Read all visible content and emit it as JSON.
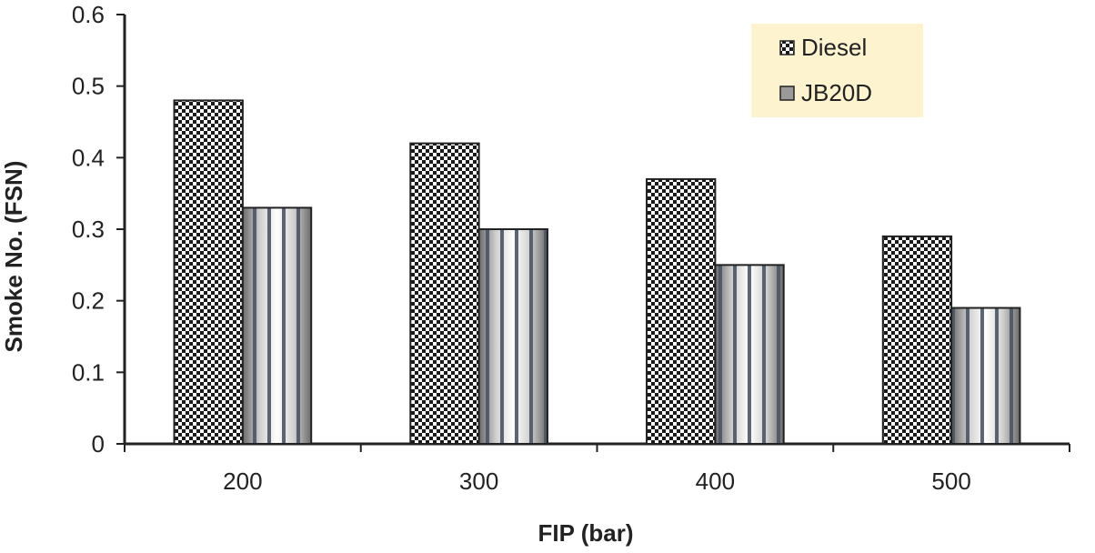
{
  "chart_data": {
    "type": "bar",
    "categories": [
      "200",
      "300",
      "400",
      "500"
    ],
    "series": [
      {
        "name": "Diesel",
        "values": [
          0.48,
          0.42,
          0.37,
          0.29
        ]
      },
      {
        "name": "JB20D",
        "values": [
          0.33,
          0.3,
          0.25,
          0.19
        ]
      }
    ],
    "xlabel": "FIP (bar)",
    "ylabel": "Smoke No. (FSN)",
    "ylim": [
      0,
      0.6
    ],
    "yticks": [
      "0",
      "0.1",
      "0.2",
      "0.3",
      "0.4",
      "0.5",
      "0.6"
    ],
    "grid": false,
    "legend_position": "top-right",
    "legend_background": "#fdf3cf",
    "series_colors": {
      "Diesel": "#222222",
      "JB20D": "#555b66"
    }
  }
}
